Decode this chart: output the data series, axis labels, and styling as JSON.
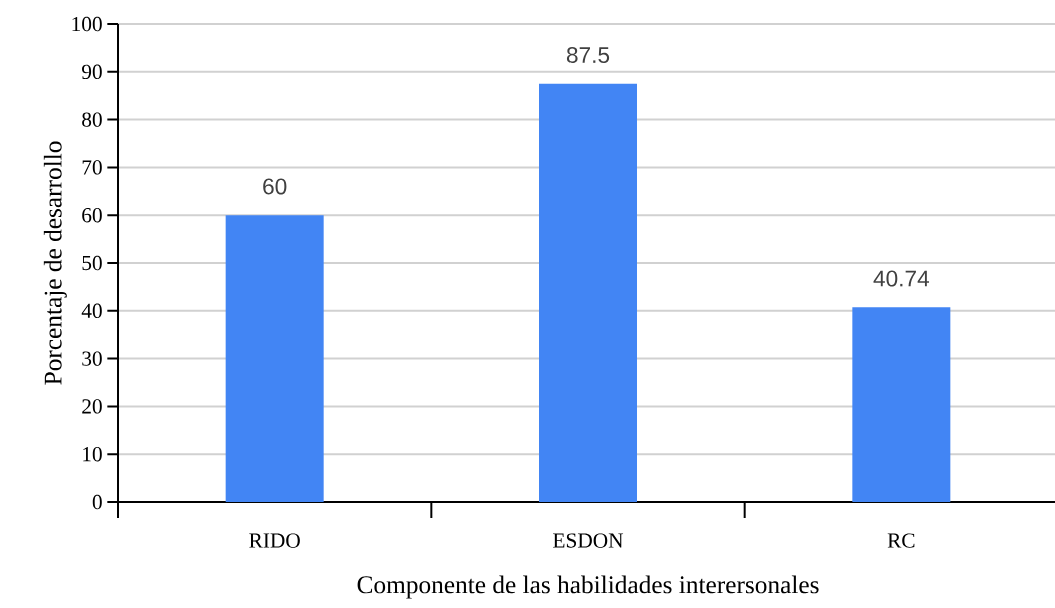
{
  "chart_data": {
    "type": "bar",
    "xlabel": "Componente de las habilidades interersonales",
    "ylabel": "Porcentaje de desarrollo",
    "categories": [
      "RIDO",
      "ESDON",
      "RC"
    ],
    "values": [
      60,
      87.5,
      40.74
    ],
    "color": "#4285f4",
    "ylim": [
      0,
      100
    ],
    "yticks": [
      0,
      10,
      20,
      30,
      40,
      50,
      60,
      70,
      80,
      90,
      100
    ],
    "grid": "y",
    "data_labels": true
  }
}
